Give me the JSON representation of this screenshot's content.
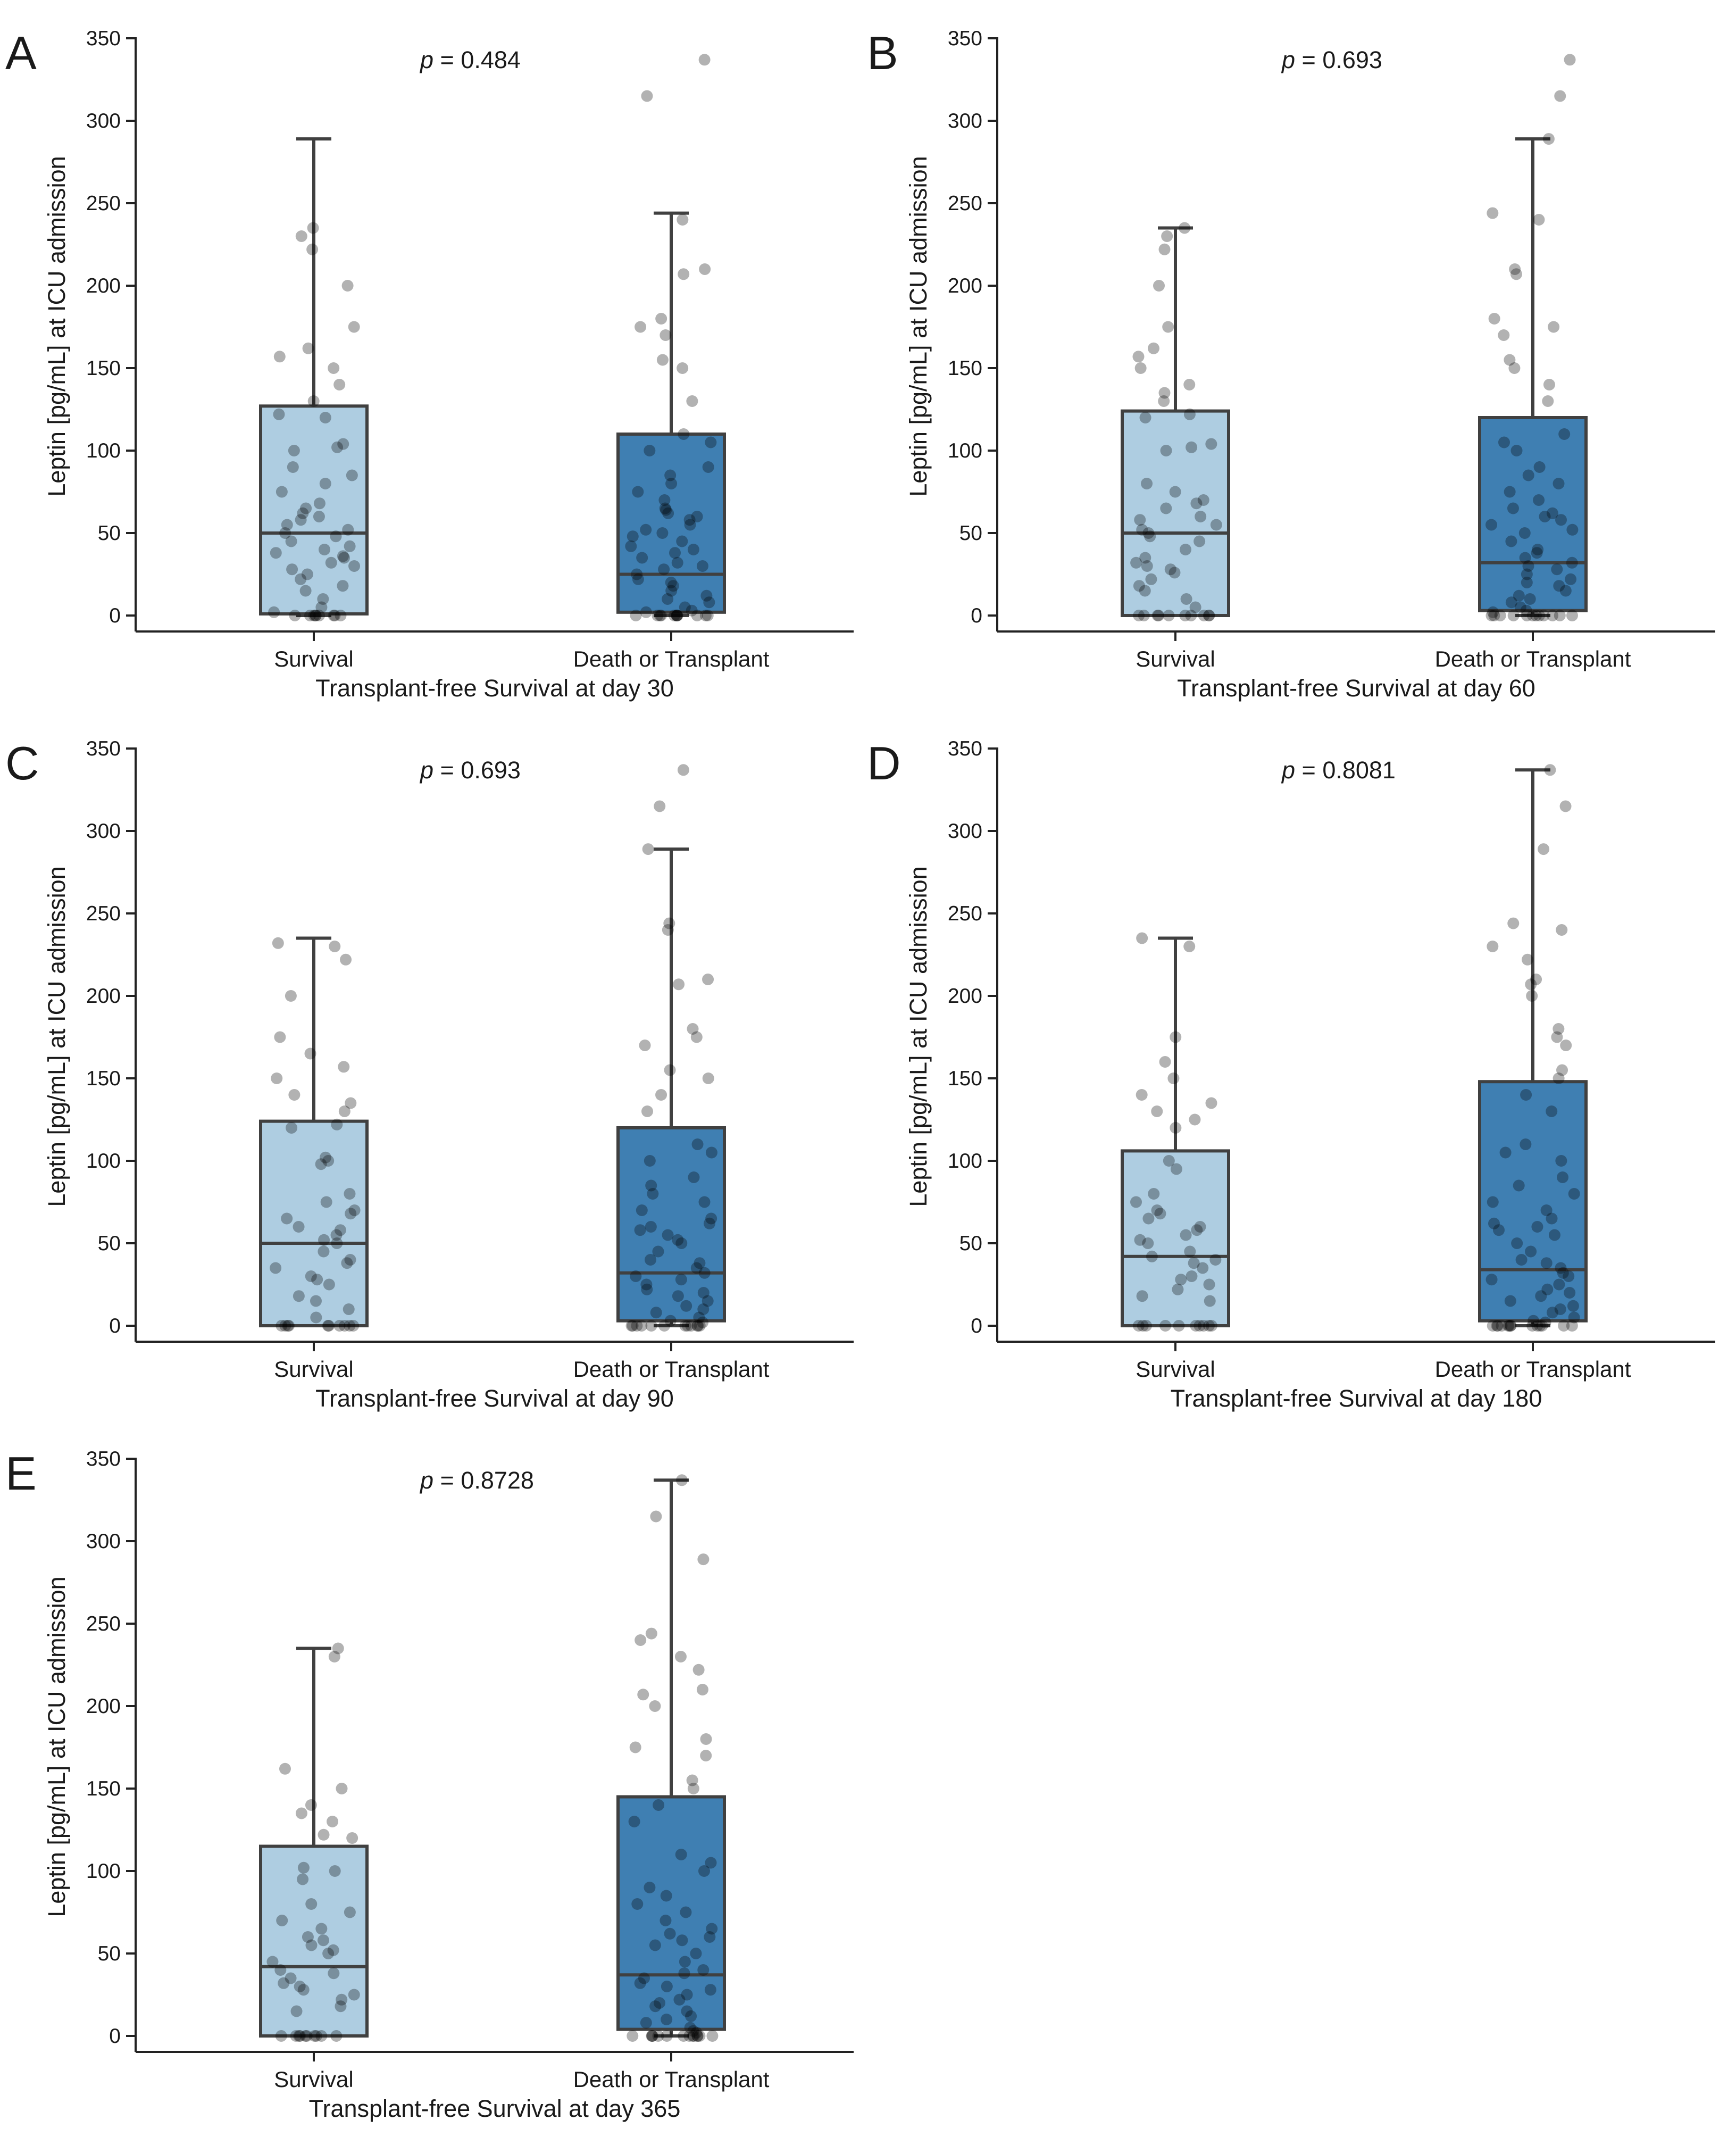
{
  "chart_data": [
    {
      "type": "box",
      "panel": "A",
      "xlabel": "Transplant-free Survival at day 30",
      "ylabel": "Leptin [pg/mL] at ICU admission",
      "ylim": [
        0,
        350
      ],
      "yticks": [
        0,
        50,
        100,
        150,
        200,
        250,
        300,
        350
      ],
      "categories": [
        "Survival",
        "Death or Transplant"
      ],
      "p_prefix": "p",
      "p_suffix": " = 0.484",
      "boxes": [
        {
          "name": "Survival",
          "color": "#aecde1",
          "whisker_low": 0,
          "q1": 1,
          "median": 50,
          "q3": 127,
          "whisker_high": 289,
          "points": [
            0,
            0,
            0,
            0,
            0,
            0,
            0,
            0,
            0,
            2,
            5,
            10,
            15,
            18,
            22,
            25,
            28,
            30,
            32,
            35,
            36,
            38,
            40,
            42,
            45,
            48,
            50,
            52,
            55,
            58,
            60,
            62,
            65,
            68,
            75,
            80,
            85,
            90,
            100,
            102,
            104,
            120,
            122,
            130,
            140,
            150,
            157,
            162,
            175,
            200,
            222,
            230,
            235
          ]
        },
        {
          "name": "Death or Transplant",
          "color": "#3f7fb2",
          "whisker_low": 0,
          "q1": 2,
          "median": 25,
          "q3": 110,
          "whisker_high": 244,
          "points": [
            0,
            0,
            0,
            0,
            0,
            0,
            0,
            0,
            0,
            0,
            0,
            0,
            2,
            3,
            5,
            8,
            10,
            12,
            15,
            18,
            20,
            22,
            25,
            28,
            30,
            32,
            35,
            38,
            40,
            42,
            45,
            48,
            50,
            52,
            55,
            58,
            60,
            62,
            64,
            65,
            70,
            75,
            80,
            85,
            90,
            100,
            105,
            110,
            130,
            150,
            155,
            170,
            175,
            180,
            207,
            210,
            240,
            315,
            337
          ]
        }
      ]
    },
    {
      "type": "box",
      "panel": "B",
      "xlabel": "Transplant-free Survival at day 60",
      "ylabel": "Leptin [pg/mL] at ICU admission",
      "ylim": [
        0,
        350
      ],
      "yticks": [
        0,
        50,
        100,
        150,
        200,
        250,
        300,
        350
      ],
      "categories": [
        "Survival",
        "Death or Transplant"
      ],
      "p_prefix": "p",
      "p_suffix": " = 0.693",
      "boxes": [
        {
          "name": "Survival",
          "color": "#aecde1",
          "whisker_low": 0,
          "q1": 0,
          "median": 50,
          "q3": 124,
          "whisker_high": 235,
          "points": [
            0,
            0,
            0,
            0,
            0,
            0,
            0,
            0,
            0,
            0,
            5,
            10,
            15,
            18,
            22,
            26,
            28,
            30,
            32,
            35,
            40,
            45,
            48,
            50,
            52,
            55,
            58,
            60,
            65,
            68,
            70,
            75,
            80,
            100,
            102,
            104,
            120,
            122,
            130,
            135,
            140,
            150,
            157,
            162,
            175,
            200,
            222,
            230,
            235
          ]
        },
        {
          "name": "Death or Transplant",
          "color": "#3f7fb2",
          "whisker_low": 0,
          "q1": 3,
          "median": 32,
          "q3": 120,
          "whisker_high": 289,
          "points": [
            0,
            0,
            0,
            0,
            0,
            0,
            0,
            0,
            0,
            0,
            0,
            0,
            2,
            3,
            5,
            8,
            10,
            12,
            15,
            18,
            20,
            22,
            25,
            28,
            30,
            32,
            35,
            38,
            40,
            45,
            50,
            52,
            55,
            58,
            60,
            62,
            65,
            70,
            75,
            80,
            85,
            90,
            100,
            105,
            110,
            130,
            140,
            150,
            155,
            170,
            175,
            180,
            207,
            210,
            240,
            244,
            289,
            315,
            337
          ]
        }
      ]
    },
    {
      "type": "box",
      "panel": "C",
      "xlabel": "Transplant-free Survival at day 90",
      "ylabel": "Leptin [pg/mL] at ICU admission",
      "ylim": [
        0,
        350
      ],
      "yticks": [
        0,
        50,
        100,
        150,
        200,
        250,
        300,
        350
      ],
      "categories": [
        "Survival",
        "Death or Transplant"
      ],
      "p_prefix": "p",
      "p_suffix": " = 0.693",
      "boxes": [
        {
          "name": "Survival",
          "color": "#aecde1",
          "whisker_low": 0,
          "q1": 0,
          "median": 50,
          "q3": 124,
          "whisker_high": 235,
          "points": [
            0,
            0,
            0,
            0,
            0,
            0,
            0,
            0,
            0,
            0,
            5,
            10,
            15,
            18,
            25,
            28,
            30,
            35,
            38,
            40,
            45,
            50,
            52,
            55,
            58,
            60,
            65,
            68,
            70,
            75,
            80,
            98,
            100,
            102,
            120,
            122,
            130,
            135,
            140,
            150,
            157,
            165,
            175,
            200,
            222,
            230,
            232
          ]
        },
        {
          "name": "Death or Transplant",
          "color": "#3f7fb2",
          "whisker_low": 0,
          "q1": 3,
          "median": 32,
          "q3": 120,
          "whisker_high": 289,
          "points": [
            0,
            0,
            0,
            0,
            0,
            0,
            0,
            0,
            0,
            0,
            0,
            0,
            2,
            3,
            5,
            8,
            10,
            12,
            15,
            18,
            20,
            22,
            25,
            28,
            30,
            32,
            35,
            38,
            40,
            45,
            50,
            52,
            55,
            58,
            60,
            62,
            65,
            70,
            75,
            80,
            85,
            90,
            100,
            105,
            110,
            130,
            140,
            150,
            155,
            170,
            175,
            180,
            207,
            210,
            240,
            244,
            289,
            315,
            337
          ]
        }
      ]
    },
    {
      "type": "box",
      "panel": "D",
      "xlabel": "Transplant-free Survival at day 180",
      "ylabel": "Leptin [pg/mL] at ICU admission",
      "ylim": [
        0,
        350
      ],
      "yticks": [
        0,
        50,
        100,
        150,
        200,
        250,
        300,
        350
      ],
      "categories": [
        "Survival",
        "Death or Transplant"
      ],
      "p_prefix": "p",
      "p_suffix": " = 0.8081",
      "boxes": [
        {
          "name": "Survival",
          "color": "#aecde1",
          "whisker_low": 0,
          "q1": 0,
          "median": 42,
          "q3": 106,
          "whisker_high": 235,
          "points": [
            0,
            0,
            0,
            0,
            0,
            0,
            0,
            0,
            0,
            0,
            15,
            18,
            22,
            25,
            28,
            30,
            35,
            38,
            40,
            42,
            45,
            50,
            52,
            55,
            58,
            60,
            65,
            68,
            70,
            75,
            80,
            95,
            100,
            120,
            125,
            130,
            135,
            140,
            150,
            160,
            175,
            230,
            235
          ]
        },
        {
          "name": "Death or Transplant",
          "color": "#3f7fb2",
          "whisker_low": 0,
          "q1": 3,
          "median": 34,
          "q3": 148,
          "whisker_high": 337,
          "points": [
            0,
            0,
            0,
            0,
            0,
            0,
            0,
            0,
            0,
            0,
            0,
            0,
            0,
            0,
            2,
            3,
            5,
            8,
            10,
            12,
            15,
            18,
            20,
            22,
            25,
            28,
            30,
            32,
            35,
            38,
            40,
            45,
            50,
            55,
            58,
            60,
            62,
            65,
            70,
            75,
            80,
            85,
            90,
            100,
            105,
            110,
            130,
            140,
            150,
            155,
            170,
            175,
            180,
            200,
            207,
            210,
            222,
            230,
            240,
            244,
            289,
            315,
            337
          ]
        }
      ]
    },
    {
      "type": "box",
      "panel": "E",
      "xlabel": "Transplant-free Survival at day 365",
      "ylabel": "Leptin [pg/mL] at ICU admission",
      "ylim": [
        0,
        350
      ],
      "yticks": [
        0,
        50,
        100,
        150,
        200,
        250,
        300,
        350
      ],
      "categories": [
        "Survival",
        "Death or Transplant"
      ],
      "p_prefix": "p",
      "p_suffix": " = 0.8728",
      "boxes": [
        {
          "name": "Survival",
          "color": "#aecde1",
          "whisker_low": 0,
          "q1": 0,
          "median": 42,
          "q3": 115,
          "whisker_high": 235,
          "points": [
            0,
            0,
            0,
            0,
            0,
            0,
            0,
            0,
            0,
            0,
            15,
            18,
            22,
            25,
            28,
            30,
            32,
            35,
            38,
            40,
            45,
            50,
            52,
            55,
            58,
            60,
            65,
            70,
            75,
            80,
            95,
            100,
            102,
            120,
            122,
            130,
            135,
            140,
            150,
            162,
            230,
            235
          ]
        },
        {
          "name": "Death or Transplant",
          "color": "#3f7fb2",
          "whisker_low": 0,
          "q1": 4,
          "median": 37,
          "q3": 145,
          "whisker_high": 337,
          "points": [
            0,
            0,
            0,
            0,
            0,
            0,
            0,
            0,
            0,
            0,
            0,
            0,
            0,
            0,
            2,
            3,
            5,
            8,
            10,
            12,
            15,
            18,
            20,
            22,
            25,
            28,
            30,
            32,
            35,
            38,
            40,
            45,
            50,
            55,
            58,
            60,
            62,
            65,
            70,
            75,
            80,
            85,
            90,
            100,
            105,
            110,
            130,
            140,
            150,
            155,
            170,
            175,
            180,
            200,
            207,
            210,
            222,
            230,
            240,
            244,
            289,
            315,
            337
          ]
        }
      ]
    }
  ]
}
